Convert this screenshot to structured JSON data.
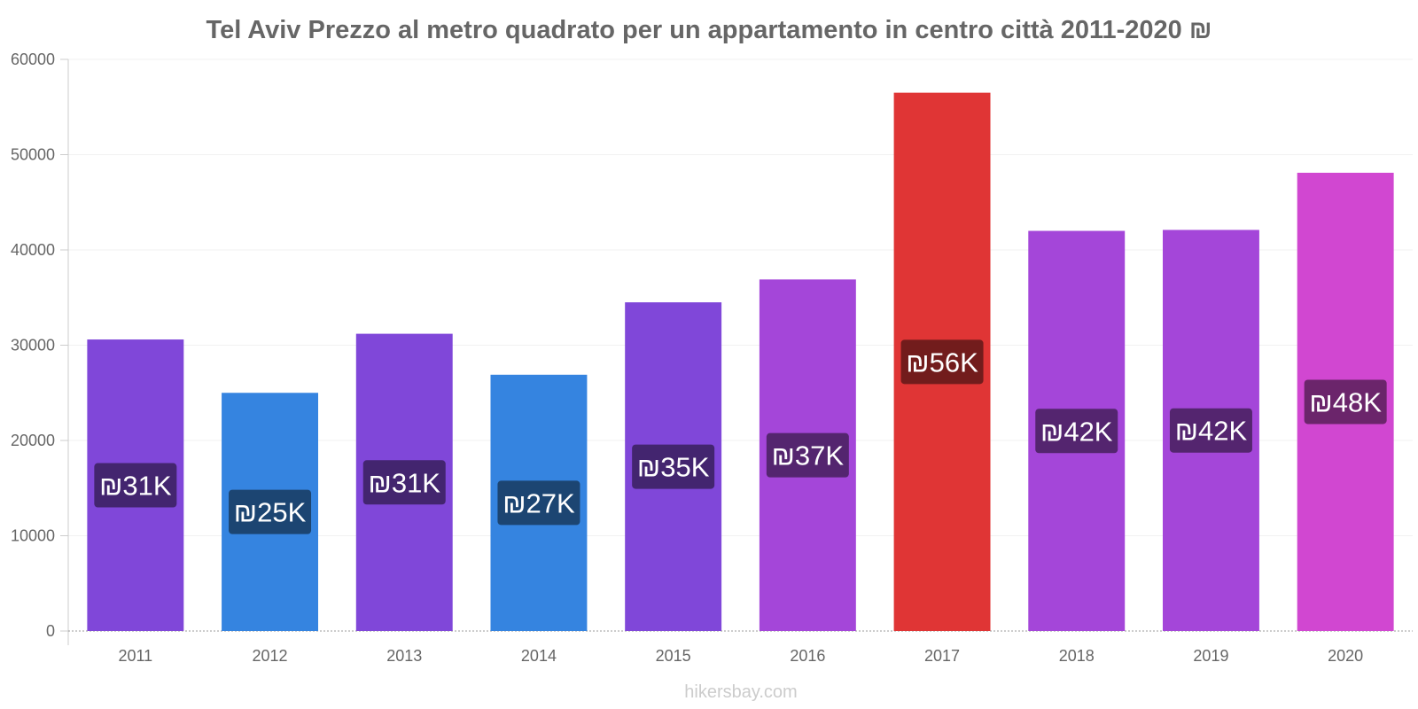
{
  "chart_data": {
    "type": "bar",
    "title": "Tel Aviv Prezzo al metro quadrato per un appartamento in centro città 2011-2020 ₪",
    "xlabel": "",
    "ylabel": "",
    "ylim": [
      0,
      60000
    ],
    "yticks": [
      0,
      10000,
      20000,
      30000,
      40000,
      50000,
      60000
    ],
    "grid": true,
    "categories": [
      "2011",
      "2012",
      "2013",
      "2014",
      "2015",
      "2016",
      "2017",
      "2018",
      "2019",
      "2020"
    ],
    "values": [
      30600,
      25000,
      31200,
      26900,
      34500,
      36900,
      56500,
      42000,
      42100,
      48100
    ],
    "data_labels": [
      "₪31K",
      "₪25K",
      "₪31K",
      "₪27K",
      "₪35K",
      "₪37K",
      "₪56K",
      "₪42K",
      "₪42K",
      "₪48K"
    ],
    "bar_colors": [
      "#8047d9",
      "#3584e0",
      "#8047d9",
      "#3584e0",
      "#8047d9",
      "#a446d9",
      "#e03535",
      "#a446d9",
      "#a446d9",
      "#d147d1"
    ],
    "label_bg_colors": [
      "#43256f",
      "#1c4572",
      "#43256f",
      "#1c4572",
      "#43256f",
      "#54256f",
      "#721c1c",
      "#54256f",
      "#54256f",
      "#6b256b"
    ]
  },
  "footer": {
    "source": "hikersbay.com"
  }
}
